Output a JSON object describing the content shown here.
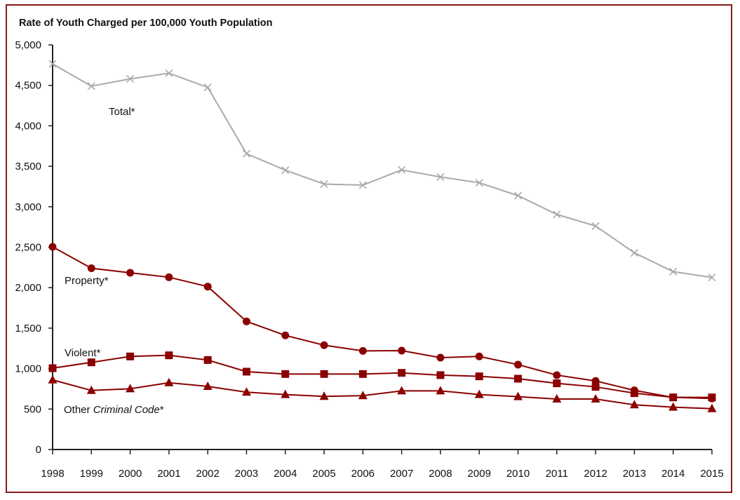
{
  "chart_data": {
    "type": "line",
    "title": "Rate of Youth Charged per 100,000 Youth Population",
    "xlabel": "",
    "ylabel": "",
    "ylim": [
      0,
      5000
    ],
    "yticks": [
      "0",
      "500",
      "1,000",
      "1,500",
      "2,000",
      "2,500",
      "3,000",
      "3,500",
      "4,000",
      "4,500",
      "5,000"
    ],
    "ytick_values": [
      0,
      500,
      1000,
      1500,
      2000,
      2500,
      3000,
      3500,
      4000,
      4500,
      5000
    ],
    "x": [
      "1998",
      "1999",
      "2000",
      "2001",
      "2002",
      "2003",
      "2004",
      "2005",
      "2006",
      "2007",
      "2008",
      "2009",
      "2010",
      "2011",
      "2012",
      "2013",
      "2014",
      "2015"
    ],
    "grid": false,
    "legend": "inline labels",
    "series": [
      {
        "name": "Total*",
        "label_parts": [
          "Total*"
        ],
        "color": "#aaaaaa",
        "marker": "x",
        "values": [
          4765,
          4490,
          4580,
          4650,
          4475,
          3655,
          3452,
          3280,
          3267,
          3455,
          3368,
          3296,
          3137,
          2905,
          2762,
          2430,
          2198,
          2126
        ]
      },
      {
        "name": "Property*",
        "label_parts": [
          "Property*"
        ],
        "color": "#8b0000",
        "marker": "circle",
        "values": [
          2504,
          2240,
          2184,
          2129,
          2013,
          1583,
          1410,
          1289,
          1219,
          1222,
          1135,
          1150,
          1049,
          919,
          847,
          731,
          644,
          630
        ]
      },
      {
        "name": "Violent*",
        "label_parts": [
          "Violent*"
        ],
        "color": "#8b0000",
        "marker": "square",
        "values": [
          1005,
          1077,
          1150,
          1164,
          1106,
          962,
          933,
          933,
          933,
          947,
          919,
          904,
          875,
          818,
          774,
          696,
          644,
          644
        ]
      },
      {
        "name": "Other Criminal Code*",
        "label_parts": [
          "Other ",
          "Criminal Code",
          "*"
        ],
        "color": "#8b0000",
        "marker": "triangle",
        "values": [
          860,
          730,
          751,
          825,
          780,
          708,
          679,
          656,
          665,
          725,
          725,
          679,
          653,
          624,
          624,
          552,
          523,
          505
        ]
      }
    ]
  },
  "frame_color": "#8b1a1a"
}
